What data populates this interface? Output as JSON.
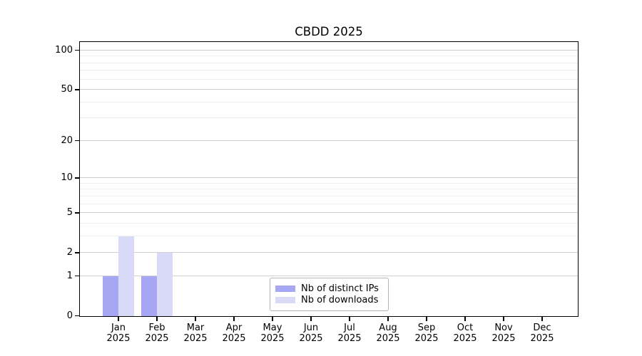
{
  "title": "CBDD 2025",
  "chart_data": {
    "type": "bar",
    "title": "CBDD 2025",
    "categories": [
      "Jan",
      "Feb",
      "Mar",
      "Apr",
      "May",
      "Jun",
      "Jul",
      "Aug",
      "Sep",
      "Oct",
      "Nov",
      "Dec"
    ],
    "category_year": "2025",
    "series": [
      {
        "name": "Nb of distinct IPs",
        "slug": "distinct-ips",
        "color": "#a6a6f2",
        "values": [
          1,
          1,
          0,
          0,
          0,
          0,
          0,
          0,
          0,
          0,
          0,
          0
        ]
      },
      {
        "name": "Nb of downloads",
        "slug": "downloads",
        "color": "#d9d9f8",
        "values": [
          3,
          2,
          0,
          0,
          0,
          0,
          0,
          0,
          0,
          0,
          0,
          0
        ]
      }
    ],
    "xlabel": "",
    "ylabel": "",
    "y_axis": {
      "scale": "log10(1+v)",
      "ticks": [
        0,
        1,
        2,
        5,
        10,
        20,
        50,
        100
      ],
      "minor_gridlines": [
        3,
        4,
        6,
        7,
        8,
        9,
        30,
        40,
        60,
        70,
        80,
        90
      ],
      "range": [
        0,
        116
      ]
    },
    "grid": "horizontal",
    "legend_position": "bottom-center"
  },
  "colors": {
    "distinct_ips_bar": "#a6a6f2",
    "downloads_bar": "#d9d9f8",
    "major_gridline": "#d0d0d0",
    "minor_gridline": "#ececec",
    "axis_spine": "#000000",
    "legend_border": "#b5b5b5",
    "background": "#ffffff"
  }
}
